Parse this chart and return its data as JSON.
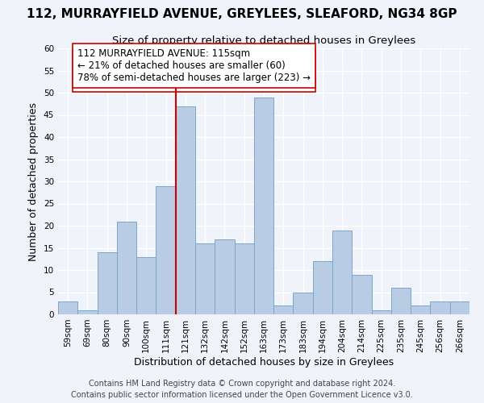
{
  "title": "112, MURRAYFIELD AVENUE, GREYLEES, SLEAFORD, NG34 8GP",
  "subtitle": "Size of property relative to detached houses in Greylees",
  "xlabel": "Distribution of detached houses by size in Greylees",
  "ylabel": "Number of detached properties",
  "bin_labels": [
    "59sqm",
    "69sqm",
    "80sqm",
    "90sqm",
    "100sqm",
    "111sqm",
    "121sqm",
    "132sqm",
    "142sqm",
    "152sqm",
    "163sqm",
    "173sqm",
    "183sqm",
    "194sqm",
    "204sqm",
    "214sqm",
    "225sqm",
    "235sqm",
    "245sqm",
    "256sqm",
    "266sqm"
  ],
  "bar_heights": [
    3,
    1,
    14,
    21,
    13,
    29,
    47,
    16,
    17,
    16,
    49,
    2,
    5,
    12,
    19,
    9,
    1,
    6,
    2,
    3,
    3
  ],
  "bar_color": "#b8cce4",
  "bar_edge_color": "#7ba7cc",
  "vline_x_index": 5,
  "vline_color": "#cc0000",
  "annotation_text": "112 MURRAYFIELD AVENUE: 115sqm\n← 21% of detached houses are smaller (60)\n78% of semi-detached houses are larger (223) →",
  "annotation_box_color": "#ffffff",
  "annotation_box_edge": "#cc0000",
  "ylim": [
    0,
    60
  ],
  "yticks": [
    0,
    5,
    10,
    15,
    20,
    25,
    30,
    35,
    40,
    45,
    50,
    55,
    60
  ],
  "footer1": "Contains HM Land Registry data © Crown copyright and database right 2024.",
  "footer2": "Contains public sector information licensed under the Open Government Licence v3.0.",
  "bg_color": "#f0f4fa",
  "grid_color": "#ffffff",
  "title_fontsize": 11,
  "subtitle_fontsize": 9.5,
  "axis_label_fontsize": 9,
  "tick_fontsize": 7.5,
  "annotation_fontsize": 8.5,
  "footer_fontsize": 7
}
